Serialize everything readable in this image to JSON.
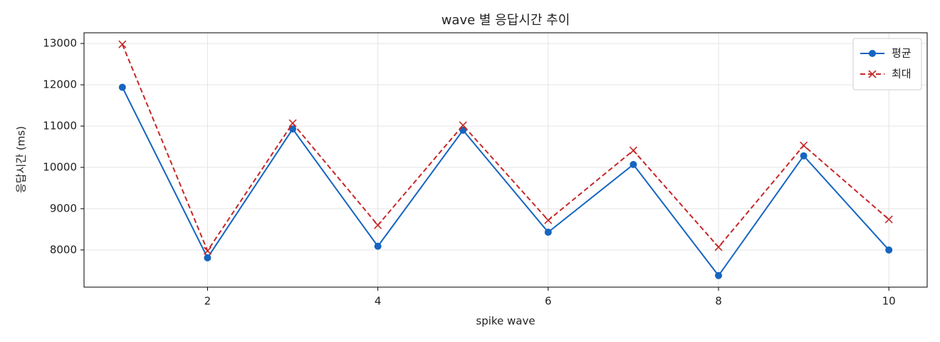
{
  "chart_data": {
    "type": "line",
    "title": "wave 별 응답시간 추이",
    "x_label": "spike wave",
    "y_label": "응답시간 (ms)",
    "x": [
      1,
      2,
      3,
      4,
      5,
      6,
      7,
      8,
      9,
      10
    ],
    "series": [
      {
        "name": "평균",
        "color": "#1565c0",
        "linestyle": "solid",
        "marker": "circle",
        "values": [
          11940,
          7810,
          10930,
          8090,
          10900,
          8430,
          10070,
          7380,
          10280,
          8000
        ]
      },
      {
        "name": "최대",
        "color": "#c62828",
        "linestyle": "dashed",
        "marker": "x",
        "values": [
          12980,
          7980,
          11070,
          8600,
          11020,
          8720,
          10410,
          8070,
          10530,
          8740
        ]
      }
    ],
    "xlim": [
      0.55,
      10.45
    ],
    "xticks": [
      2,
      4,
      6,
      8,
      10
    ],
    "ylim": [
      7100,
      13260
    ],
    "yticks": [
      8000,
      9000,
      10000,
      11000,
      12000,
      13000
    ],
    "grid": true,
    "legend": "upper right"
  }
}
